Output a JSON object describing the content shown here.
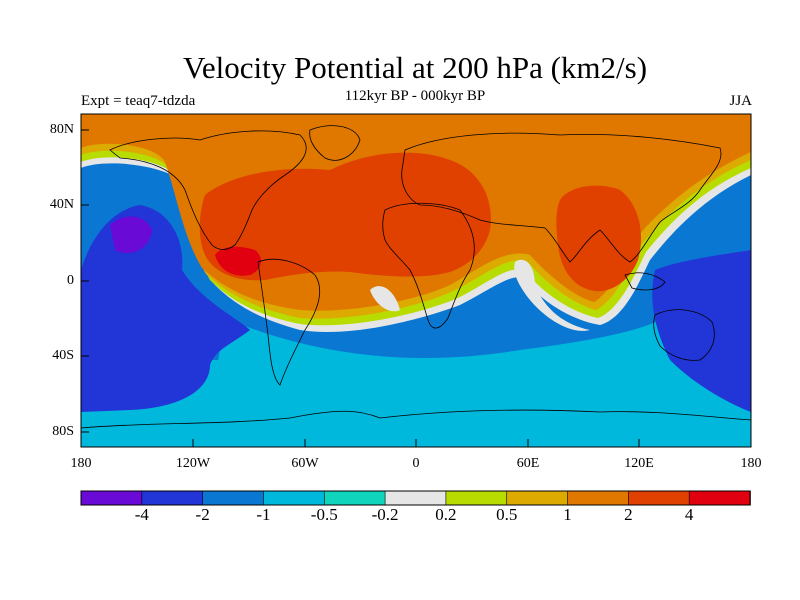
{
  "header": {
    "title": "Velocity Potential at 200 hPa (km2/s)",
    "subtitle": "112kyr BP - 000kyr BP",
    "left": "Expt = teaq7-tdzda",
    "right": "JJA"
  },
  "map": {
    "lat_labels": [
      "80N",
      "40N",
      "0",
      "40S",
      "80S"
    ],
    "lon_labels": [
      "180",
      "120W",
      "60W",
      "0",
      "60E",
      "120E",
      "180"
    ]
  },
  "colorbar": {
    "labels": [
      "-4",
      "-2",
      "-1",
      "-0.5",
      "-0.2",
      "0.2",
      "0.5",
      "1",
      "2",
      "4"
    ],
    "colors": [
      "#6a0ad6",
      "#2235d6",
      "#0a78d2",
      "#00b8dc",
      "#10d4bc",
      "#e6e6e6",
      "#b8dc00",
      "#dcaa00",
      "#e07800",
      "#e04000",
      "#e00010"
    ]
  }
}
